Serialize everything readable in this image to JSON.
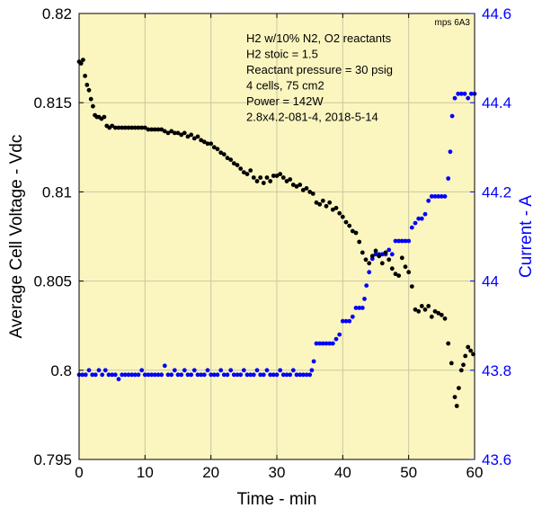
{
  "chart_data": {
    "type": "scatter",
    "tag": "mps 6A3",
    "annotations": [
      "H2 w/10% N2, O2 reactants",
      "H2 stoic = 1.5",
      "Reactant pressure = 30 psig",
      "4 cells, 75 cm2",
      "Power = 142W",
      "2.8x4.2-081-4,  2018-5-14"
    ],
    "xlabel": "Time - min",
    "ylabel_left": "Average Cell Voltage - Vdc",
    "ylabel_right": "Current - A",
    "xlim": [
      0,
      60
    ],
    "ylim_left": [
      0.795,
      0.82
    ],
    "ylim_right": [
      43.6,
      44.6
    ],
    "x_ticks": [
      "0",
      "10",
      "20",
      "30",
      "40",
      "50",
      "60"
    ],
    "y_left_ticks": [
      "0.795",
      "0.8",
      "0.805",
      "0.81",
      "0.815",
      "0.82"
    ],
    "y_right_ticks": [
      "43.6",
      "43.8",
      "44",
      "44.2",
      "44.4",
      "44.6"
    ],
    "grid": true,
    "colors": {
      "background": "#fbf6bf",
      "grid": "#c8c8a0",
      "voltage": "#000000",
      "current": "#0000ff",
      "left_axis": "#000000",
      "right_axis": "#0000ff"
    },
    "series": [
      {
        "name": "Average Cell Voltage",
        "axis": "left",
        "color": "#000000",
        "points": [
          [
            0.0,
            0.8173
          ],
          [
            0.3,
            0.8172
          ],
          [
            0.6,
            0.8174
          ],
          [
            0.9,
            0.8165
          ],
          [
            1.2,
            0.816
          ],
          [
            1.5,
            0.8157
          ],
          [
            1.8,
            0.8152
          ],
          [
            2.1,
            0.8148
          ],
          [
            2.4,
            0.8143
          ],
          [
            2.7,
            0.8142
          ],
          [
            3.0,
            0.8142
          ],
          [
            3.4,
            0.8141
          ],
          [
            3.8,
            0.8142
          ],
          [
            4.2,
            0.8137
          ],
          [
            4.6,
            0.8136
          ],
          [
            5.0,
            0.8137
          ],
          [
            5.5,
            0.8136
          ],
          [
            6.0,
            0.8136
          ],
          [
            6.5,
            0.8136
          ],
          [
            7.0,
            0.8136
          ],
          [
            7.5,
            0.8136
          ],
          [
            8.0,
            0.8136
          ],
          [
            8.5,
            0.8136
          ],
          [
            9.0,
            0.8136
          ],
          [
            9.5,
            0.8136
          ],
          [
            10.0,
            0.8136
          ],
          [
            10.5,
            0.8135
          ],
          [
            11.0,
            0.8135
          ],
          [
            11.5,
            0.8135
          ],
          [
            12.0,
            0.8135
          ],
          [
            12.5,
            0.8135
          ],
          [
            13.0,
            0.8134
          ],
          [
            13.5,
            0.8133
          ],
          [
            14.0,
            0.8134
          ],
          [
            14.5,
            0.8133
          ],
          [
            15.0,
            0.8133
          ],
          [
            15.5,
            0.8132
          ],
          [
            16.0,
            0.8133
          ],
          [
            16.5,
            0.8131
          ],
          [
            17.0,
            0.8132
          ],
          [
            17.5,
            0.813
          ],
          [
            18.0,
            0.8131
          ],
          [
            18.5,
            0.8129
          ],
          [
            19.0,
            0.8128
          ],
          [
            19.5,
            0.8127
          ],
          [
            20.0,
            0.8127
          ],
          [
            20.5,
            0.8125
          ],
          [
            21.0,
            0.8124
          ],
          [
            21.5,
            0.8122
          ],
          [
            22.0,
            0.8121
          ],
          [
            22.5,
            0.8119
          ],
          [
            23.0,
            0.8118
          ],
          [
            23.5,
            0.8116
          ],
          [
            24.0,
            0.8115
          ],
          [
            24.5,
            0.8113
          ],
          [
            25.0,
            0.8111
          ],
          [
            25.5,
            0.811
          ],
          [
            26.0,
            0.8112
          ],
          [
            26.5,
            0.8108
          ],
          [
            27.0,
            0.8106
          ],
          [
            27.5,
            0.8108
          ],
          [
            28.0,
            0.8105
          ],
          [
            28.5,
            0.8108
          ],
          [
            29.0,
            0.8106
          ],
          [
            29.5,
            0.8109
          ],
          [
            30.0,
            0.8109
          ],
          [
            30.5,
            0.811
          ],
          [
            31.0,
            0.8108
          ],
          [
            31.5,
            0.8106
          ],
          [
            32.0,
            0.8107
          ],
          [
            32.5,
            0.8104
          ],
          [
            33.0,
            0.8103
          ],
          [
            33.5,
            0.8104
          ],
          [
            34.0,
            0.8101
          ],
          [
            34.5,
            0.8102
          ],
          [
            35.0,
            0.81
          ],
          [
            35.5,
            0.8099
          ],
          [
            36.0,
            0.8094
          ],
          [
            36.5,
            0.8093
          ],
          [
            37.0,
            0.8095
          ],
          [
            37.5,
            0.8092
          ],
          [
            38.0,
            0.8094
          ],
          [
            38.5,
            0.809
          ],
          [
            39.0,
            0.8091
          ],
          [
            39.5,
            0.8088
          ],
          [
            40.0,
            0.8086
          ],
          [
            40.5,
            0.8083
          ],
          [
            41.0,
            0.8081
          ],
          [
            41.5,
            0.8078
          ],
          [
            42.0,
            0.8077
          ],
          [
            42.5,
            0.8072
          ],
          [
            43.0,
            0.8066
          ],
          [
            43.5,
            0.8062
          ],
          [
            44.0,
            0.806
          ],
          [
            44.5,
            0.8064
          ],
          [
            45.0,
            0.8067
          ],
          [
            45.5,
            0.8064
          ],
          [
            46.0,
            0.806
          ],
          [
            46.5,
            0.8066
          ],
          [
            47.0,
            0.8062
          ],
          [
            47.5,
            0.8057
          ],
          [
            48.0,
            0.8054
          ],
          [
            48.5,
            0.8053
          ],
          [
            49.0,
            0.8063
          ],
          [
            49.5,
            0.8058
          ],
          [
            50.0,
            0.8055
          ],
          [
            50.5,
            0.8047
          ],
          [
            51.0,
            0.8034
          ],
          [
            51.5,
            0.8033
          ],
          [
            52.0,
            0.8036
          ],
          [
            52.5,
            0.8034
          ],
          [
            53.0,
            0.8036
          ],
          [
            53.5,
            0.803
          ],
          [
            54.0,
            0.8033
          ],
          [
            54.5,
            0.8032
          ],
          [
            55.0,
            0.8031
          ],
          [
            55.5,
            0.8029
          ],
          [
            56.0,
            0.8015
          ],
          [
            56.5,
            0.8004
          ],
          [
            57.0,
            0.7985
          ],
          [
            57.3,
            0.798
          ],
          [
            57.6,
            0.799
          ],
          [
            58.0,
            0.8
          ],
          [
            58.3,
            0.8003
          ],
          [
            58.6,
            0.8008
          ],
          [
            59.0,
            0.8013
          ],
          [
            59.4,
            0.8011
          ],
          [
            59.8,
            0.8009
          ]
        ]
      },
      {
        "name": "Current",
        "axis": "right",
        "color": "#0000ff",
        "points": [
          [
            0.0,
            43.79
          ],
          [
            0.5,
            43.79
          ],
          [
            1.0,
            43.79
          ],
          [
            1.5,
            43.8
          ],
          [
            2.0,
            43.79
          ],
          [
            2.5,
            43.79
          ],
          [
            3.0,
            43.8
          ],
          [
            3.5,
            43.79
          ],
          [
            4.0,
            43.8
          ],
          [
            4.5,
            43.79
          ],
          [
            5.0,
            43.79
          ],
          [
            5.5,
            43.79
          ],
          [
            6.0,
            43.78
          ],
          [
            6.5,
            43.79
          ],
          [
            7.0,
            43.79
          ],
          [
            7.5,
            43.79
          ],
          [
            8.0,
            43.79
          ],
          [
            8.5,
            43.79
          ],
          [
            9.0,
            43.79
          ],
          [
            9.5,
            43.8
          ],
          [
            10.0,
            43.79
          ],
          [
            10.5,
            43.79
          ],
          [
            11.0,
            43.79
          ],
          [
            11.5,
            43.79
          ],
          [
            12.0,
            43.79
          ],
          [
            12.5,
            43.79
          ],
          [
            13.0,
            43.81
          ],
          [
            13.5,
            43.79
          ],
          [
            14.0,
            43.79
          ],
          [
            14.5,
            43.8
          ],
          [
            15.0,
            43.79
          ],
          [
            15.5,
            43.79
          ],
          [
            16.0,
            43.8
          ],
          [
            16.5,
            43.79
          ],
          [
            17.0,
            43.79
          ],
          [
            17.5,
            43.8
          ],
          [
            18.0,
            43.79
          ],
          [
            18.5,
            43.79
          ],
          [
            19.0,
            43.79
          ],
          [
            19.5,
            43.8
          ],
          [
            20.0,
            43.79
          ],
          [
            20.5,
            43.79
          ],
          [
            21.0,
            43.79
          ],
          [
            21.5,
            43.8
          ],
          [
            22.0,
            43.79
          ],
          [
            22.5,
            43.79
          ],
          [
            23.0,
            43.8
          ],
          [
            23.5,
            43.79
          ],
          [
            24.0,
            43.79
          ],
          [
            24.5,
            43.79
          ],
          [
            25.0,
            43.8
          ],
          [
            25.5,
            43.79
          ],
          [
            26.0,
            43.79
          ],
          [
            26.5,
            43.79
          ],
          [
            27.0,
            43.8
          ],
          [
            27.5,
            43.79
          ],
          [
            28.0,
            43.79
          ],
          [
            28.5,
            43.8
          ],
          [
            29.0,
            43.79
          ],
          [
            29.5,
            43.79
          ],
          [
            30.0,
            43.79
          ],
          [
            30.5,
            43.8
          ],
          [
            31.0,
            43.79
          ],
          [
            31.5,
            43.79
          ],
          [
            32.0,
            43.79
          ],
          [
            32.5,
            43.8
          ],
          [
            33.0,
            43.79
          ],
          [
            33.5,
            43.79
          ],
          [
            34.0,
            43.79
          ],
          [
            34.5,
            43.79
          ],
          [
            35.0,
            43.79
          ],
          [
            35.3,
            43.8
          ],
          [
            35.6,
            43.82
          ],
          [
            36.0,
            43.86
          ],
          [
            36.5,
            43.86
          ],
          [
            37.0,
            43.86
          ],
          [
            37.5,
            43.86
          ],
          [
            38.0,
            43.86
          ],
          [
            38.5,
            43.86
          ],
          [
            39.0,
            43.87
          ],
          [
            39.5,
            43.88
          ],
          [
            40.0,
            43.91
          ],
          [
            40.5,
            43.91
          ],
          [
            41.0,
            43.91
          ],
          [
            41.5,
            43.92
          ],
          [
            42.0,
            43.94
          ],
          [
            42.5,
            43.94
          ],
          [
            43.0,
            43.94
          ],
          [
            43.3,
            43.96
          ],
          [
            43.6,
            43.99
          ],
          [
            44.0,
            44.02
          ],
          [
            44.5,
            44.05
          ],
          [
            45.0,
            44.06
          ],
          [
            45.5,
            44.06
          ],
          [
            46.0,
            44.06
          ],
          [
            46.5,
            44.06
          ],
          [
            47.0,
            44.07
          ],
          [
            47.5,
            44.06
          ],
          [
            48.0,
            44.09
          ],
          [
            48.5,
            44.09
          ],
          [
            49.0,
            44.09
          ],
          [
            49.5,
            44.09
          ],
          [
            50.0,
            44.09
          ],
          [
            50.5,
            44.12
          ],
          [
            51.0,
            44.13
          ],
          [
            51.5,
            44.14
          ],
          [
            52.0,
            44.14
          ],
          [
            52.5,
            44.15
          ],
          [
            53.0,
            44.18
          ],
          [
            53.5,
            44.19
          ],
          [
            54.0,
            44.19
          ],
          [
            54.5,
            44.19
          ],
          [
            55.0,
            44.19
          ],
          [
            55.5,
            44.19
          ],
          [
            56.0,
            44.23
          ],
          [
            56.3,
            44.29
          ],
          [
            56.6,
            44.37
          ],
          [
            57.0,
            44.41
          ],
          [
            57.5,
            44.42
          ],
          [
            58.0,
            44.42
          ],
          [
            58.5,
            44.42
          ],
          [
            59.0,
            44.41
          ],
          [
            59.5,
            44.42
          ],
          [
            60.0,
            44.42
          ]
        ]
      }
    ]
  }
}
